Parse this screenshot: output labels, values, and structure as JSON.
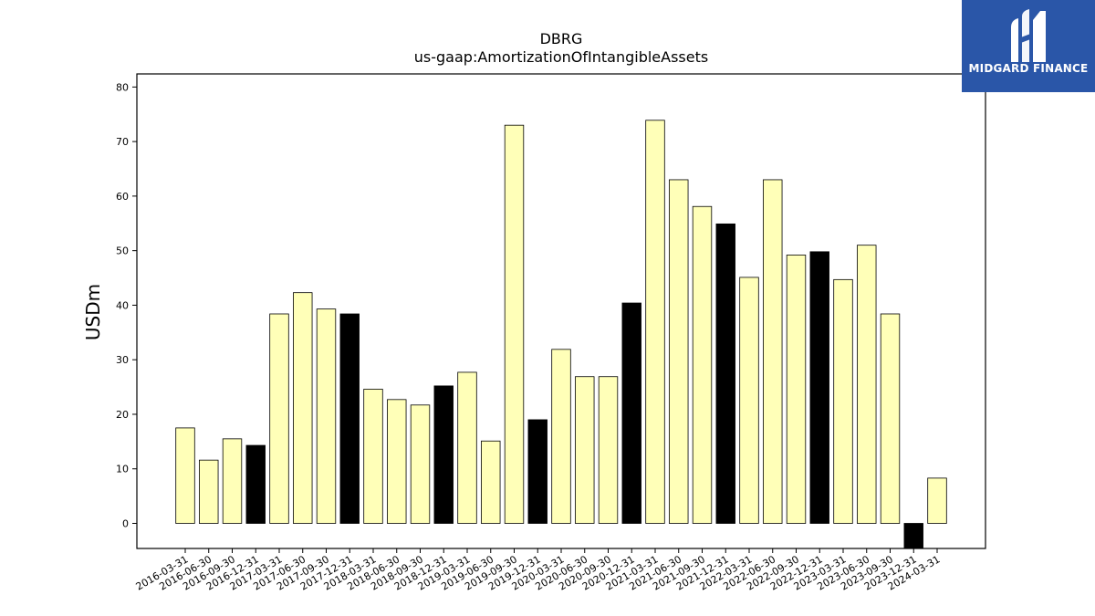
{
  "chart_data": {
    "type": "bar",
    "title": "DBRG",
    "subtitle": "us-gaap:AmortizationOfIntangibleAssets",
    "ylabel": "USDm",
    "xlabel": "",
    "ylim": [
      -4.6,
      82.4
    ],
    "yticks": [
      0,
      10,
      20,
      30,
      40,
      50,
      60,
      70,
      80
    ],
    "grid": false,
    "categories": [
      "2016-03-31",
      "2016-06-30",
      "2016-09-30",
      "2016-12-31",
      "2017-03-31",
      "2017-06-30",
      "2017-09-30",
      "2017-12-31",
      "2018-03-31",
      "2018-06-30",
      "2018-09-30",
      "2018-12-31",
      "2019-03-31",
      "2019-06-30",
      "2019-09-30",
      "2019-12-31",
      "2020-03-31",
      "2020-06-30",
      "2020-09-30",
      "2020-12-31",
      "2021-03-31",
      "2021-06-30",
      "2021-09-30",
      "2021-12-31",
      "2022-03-31",
      "2022-06-30",
      "2022-09-30",
      "2022-12-31",
      "2023-03-31",
      "2023-06-30",
      "2023-09-30",
      "2023-12-31",
      "2024-03-31"
    ],
    "values": [
      17.5,
      11.6,
      15.5,
      14.3,
      38.4,
      42.3,
      39.3,
      38.4,
      24.6,
      22.7,
      21.7,
      25.2,
      27.7,
      15.1,
      73.0,
      19.0,
      31.9,
      26.9,
      26.9,
      40.4,
      73.9,
      63.0,
      58.1,
      54.9,
      45.1,
      63.0,
      49.2,
      49.8,
      44.7,
      51.0,
      38.4,
      -4.6,
      8.3
    ],
    "quarter_end_color": "#000000",
    "quarter_color": "#ffffb8",
    "edge_color": "#000000"
  },
  "logo": {
    "text": "MIDGARD FINANCE",
    "icon": "midgard-logo-icon",
    "bg": "#2a56a8"
  }
}
